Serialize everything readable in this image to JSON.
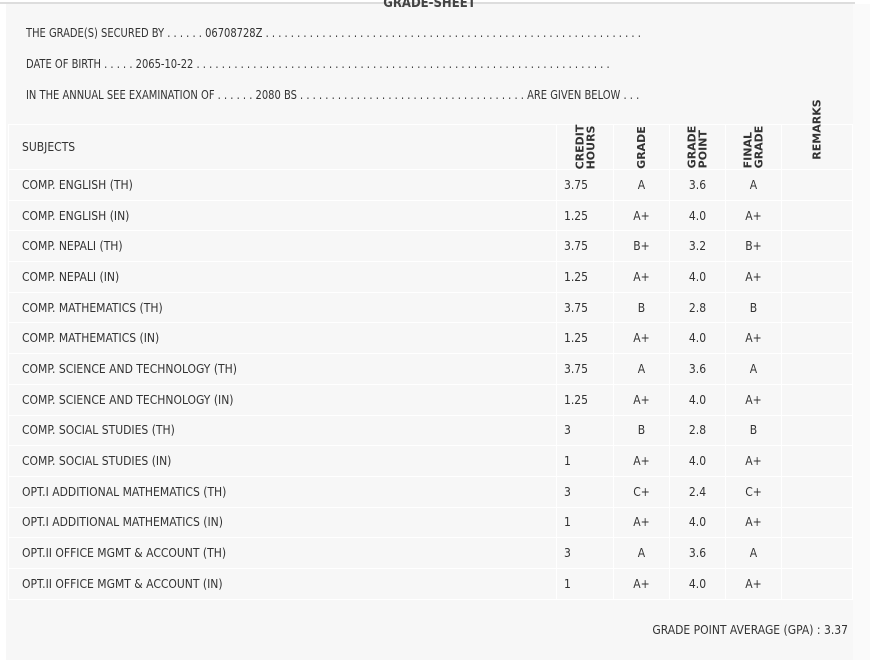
{
  "title": "GRADE-SHEET",
  "info": {
    "line1": "THE GRADE(S) SECURED BY . . . . . . 06708728Z . . . . . . . . . . . . . . . . . . . . . . . . . . . . . . . . . . . . . . . . . . . . . . . . . . . . . . . . . . . .",
    "line2": "DATE OF BIRTH . . . . . 2065-10-22 . . . . . . . . . . . . . . . . . . . . . . . . . . . . . . . . . . . . . . . . . . . . . . . . . . . . . . . . . . . . . . . . . .",
    "line3": "IN THE ANNUAL SEE EXAMINATION OF . . . . . . 2080 BS . . . . . . . . . . . . . . . . . . . . . . . . . . . . . . . . . . . . ARE GIVEN BELOW . . ."
  },
  "headers": {
    "subjects": "SUBJECTS",
    "credit1": "CREDIT",
    "credit2": "HOURS",
    "grade": "GRADE",
    "gp1": "GRADE",
    "gp2": "POINT",
    "fg1": "FINAL",
    "fg2": "GRADE",
    "remarks": "REMARKS"
  },
  "rows": [
    {
      "subject": "COMP. ENGLISH (TH)",
      "credit": "3.75",
      "grade": "A",
      "gp": "3.6",
      "final": "A"
    },
    {
      "subject": "COMP. ENGLISH (IN)",
      "credit": "1.25",
      "grade": "A+",
      "gp": "4.0",
      "final": "A+"
    },
    {
      "subject": "COMP. NEPALI (TH)",
      "credit": "3.75",
      "grade": "B+",
      "gp": "3.2",
      "final": "B+"
    },
    {
      "subject": "COMP. NEPALI (IN)",
      "credit": "1.25",
      "grade": "A+",
      "gp": "4.0",
      "final": "A+"
    },
    {
      "subject": "COMP. MATHEMATICS (TH)",
      "credit": "3.75",
      "grade": "B",
      "gp": "2.8",
      "final": "B"
    },
    {
      "subject": "COMP. MATHEMATICS (IN)",
      "credit": "1.25",
      "grade": "A+",
      "gp": "4.0",
      "final": "A+"
    },
    {
      "subject": "COMP. SCIENCE AND TECHNOLOGY (TH)",
      "credit": "3.75",
      "grade": "A",
      "gp": "3.6",
      "final": "A"
    },
    {
      "subject": "COMP. SCIENCE AND TECHNOLOGY (IN)",
      "credit": "1.25",
      "grade": "A+",
      "gp": "4.0",
      "final": "A+"
    },
    {
      "subject": "COMP. SOCIAL STUDIES (TH)",
      "credit": "3",
      "grade": "B",
      "gp": "2.8",
      "final": "B"
    },
    {
      "subject": "COMP. SOCIAL STUDIES (IN)",
      "credit": "1",
      "grade": "A+",
      "gp": "4.0",
      "final": "A+"
    },
    {
      "subject": "OPT.I ADDITIONAL MATHEMATICS (TH)",
      "credit": "3",
      "grade": "C+",
      "gp": "2.4",
      "final": "C+"
    },
    {
      "subject": "OPT.I ADDITIONAL MATHEMATICS (IN)",
      "credit": "1",
      "grade": "A+",
      "gp": "4.0",
      "final": "A+"
    },
    {
      "subject": "OPT.II OFFICE MGMT & ACCOUNT (TH)",
      "credit": "3",
      "grade": "A",
      "gp": "3.6",
      "final": "A"
    },
    {
      "subject": "OPT.II OFFICE MGMT & ACCOUNT (IN)",
      "credit": "1",
      "grade": "A+",
      "gp": "4.0",
      "final": "A+"
    }
  ],
  "gpa": "GRADE POINT AVERAGE (GPA) : 3.37"
}
